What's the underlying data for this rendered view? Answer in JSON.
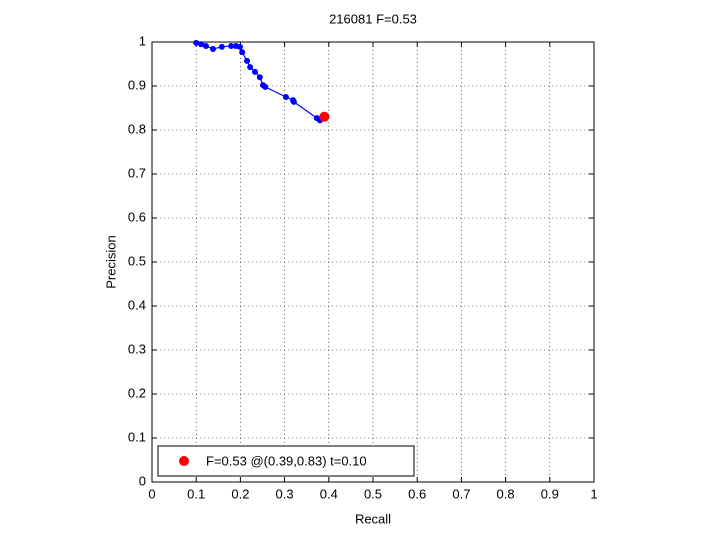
{
  "chart_data": {
    "type": "line",
    "title": "216081 F=0.53",
    "xlabel": "Recall",
    "ylabel": "Precision",
    "xlim": [
      0,
      1
    ],
    "ylim": [
      0,
      1
    ],
    "xticks": [
      0,
      0.1,
      0.2,
      0.3,
      0.4,
      0.5,
      0.6,
      0.7,
      0.8,
      0.9,
      1
    ],
    "yticks": [
      0,
      0.1,
      0.2,
      0.3,
      0.4,
      0.5,
      0.6,
      0.7,
      0.8,
      0.9,
      1
    ],
    "grid": true,
    "legend_position": "lower left",
    "series": [
      {
        "color": "#0000ff",
        "marker": "dot",
        "x": [
          0.1,
          0.111,
          0.122,
          0.138,
          0.158,
          0.179,
          0.19,
          0.199,
          0.204,
          0.215,
          0.222,
          0.233,
          0.244,
          0.251,
          0.256,
          0.303,
          0.319,
          0.321,
          0.373,
          0.38
        ],
        "values": [
          0.998,
          0.995,
          0.991,
          0.984,
          0.989,
          0.991,
          0.991,
          0.989,
          0.977,
          0.957,
          0.943,
          0.932,
          0.92,
          0.902,
          0.898,
          0.875,
          0.868,
          0.864,
          0.827,
          0.822
        ]
      },
      {
        "name": "F=0.53 @(0.39,0.83) t=0.10",
        "color": "#ff0000",
        "marker": "big-dot",
        "x": [
          0.39
        ],
        "values": [
          0.83
        ]
      }
    ]
  }
}
